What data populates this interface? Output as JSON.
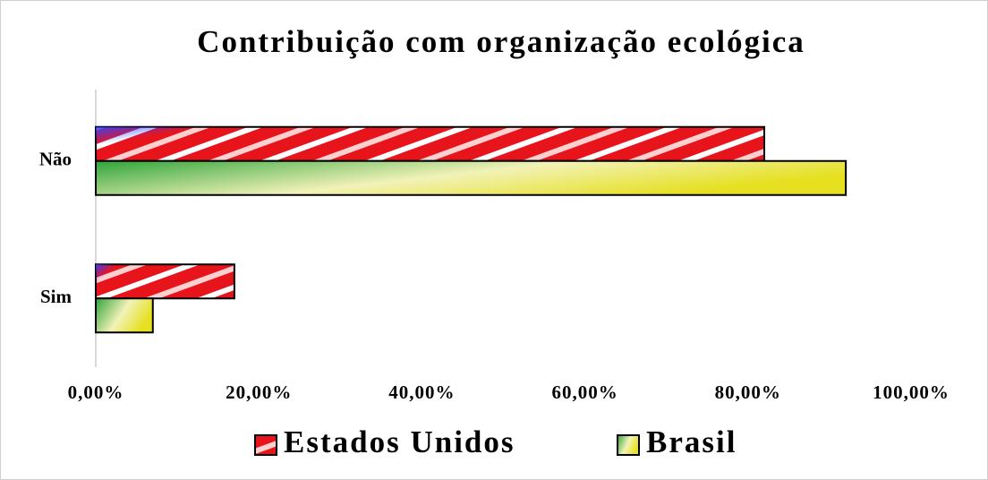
{
  "chart_data": {
    "type": "hbar",
    "title": "Contribuição com organização ecológica",
    "categories": [
      "Não",
      "Sim"
    ],
    "series": [
      {
        "name": "Estados Unidos",
        "color": "#e8141c",
        "values": [
          82,
          17
        ]
      },
      {
        "name": "Brasil",
        "color": "#2ea43a",
        "values": [
          92,
          7
        ]
      }
    ],
    "xlim": [
      0,
      100
    ],
    "xticks": [
      {
        "value": 0,
        "label": "0,00%"
      },
      {
        "value": 20,
        "label": "20,00%"
      },
      {
        "value": 40,
        "label": "40,00%"
      },
      {
        "value": 60,
        "label": "60,00%"
      },
      {
        "value": 80,
        "label": "80,00%"
      },
      {
        "value": 100,
        "label": "100,00%"
      }
    ],
    "legend": "bottom",
    "grid": false
  }
}
